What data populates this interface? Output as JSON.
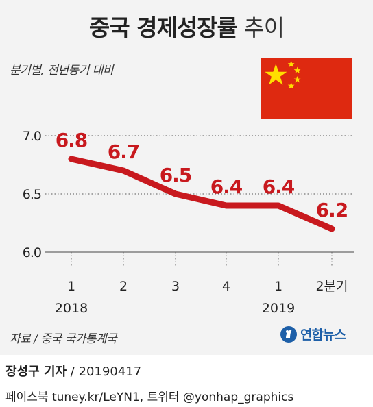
{
  "title": {
    "main": "중국 경제성장률",
    "sub": "추이"
  },
  "subtitle": "분기별, 전년동기 대비",
  "source": "자료 / 중국 국가통계국",
  "logo": {
    "text": "연합뉴스"
  },
  "byline": {
    "name": "장성구 기자",
    "separator": " / ",
    "date": "20190417"
  },
  "social": "페이스북 tuney.kr/LeYN1, 트위터 @yonhap_graphics",
  "colors": {
    "line": "#c8191e",
    "label": "#c8191e",
    "panel": "#f3f3f3",
    "flag_red": "#de2910",
    "flag_star": "#ffde00",
    "logo_blue": "#1d5fa8"
  },
  "icons": {
    "flag": "china-flag-icon",
    "logo": "yonhap-logo-icon"
  },
  "chart_data": {
    "type": "line",
    "categories": [
      "1",
      "2",
      "3",
      "4",
      "1",
      "2분기"
    ],
    "year_labels": [
      {
        "label": "2018",
        "category_index": 0
      },
      {
        "label": "2019",
        "category_index": 4
      }
    ],
    "values": [
      6.8,
      6.7,
      6.5,
      6.4,
      6.4,
      6.2
    ],
    "data_labels": [
      "6.8",
      "6.7",
      "6.5",
      "6.4",
      "6.4",
      "6.2"
    ],
    "y_ticks": [
      "7.0",
      "6.5",
      "6.0"
    ],
    "y_tick_values": [
      7.0,
      6.5,
      6.0
    ],
    "ylim": [
      6.0,
      7.0
    ],
    "grid": true,
    "legend": "none"
  }
}
